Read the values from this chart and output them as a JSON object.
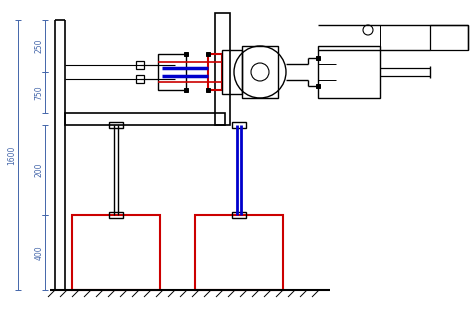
{
  "bg_color": "#ffffff",
  "line_color": "#000000",
  "red_color": "#cc0000",
  "blue_color": "#0000cc",
  "dim_color": "#4466aa",
  "figsize": [
    4.7,
    3.2
  ],
  "dpi": 100
}
